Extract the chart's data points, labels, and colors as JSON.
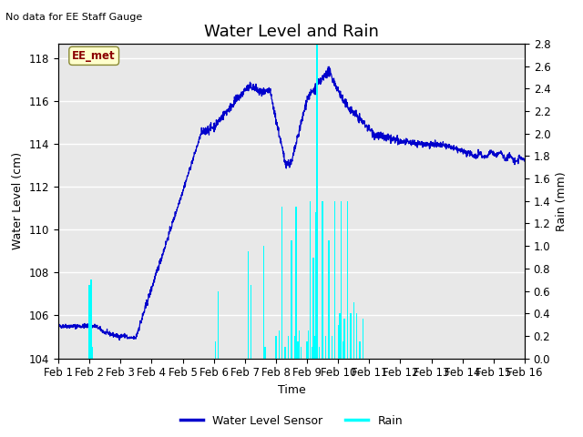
{
  "title": "Water Level and Rain",
  "top_left_text": "No data for EE Staff Gauge",
  "xlabel": "Time",
  "ylabel_left": "Water Level (cm)",
  "ylabel_right": "Rain (mm)",
  "ylim_left": [
    104,
    118.667
  ],
  "ylim_right": [
    0.0,
    2.8
  ],
  "yticks_left": [
    104,
    106,
    108,
    110,
    112,
    114,
    116,
    118
  ],
  "yticks_right": [
    0.0,
    0.2,
    0.4,
    0.6,
    0.8,
    1.0,
    1.2,
    1.4,
    1.6,
    1.8,
    2.0,
    2.2,
    2.4,
    2.6,
    2.8
  ],
  "xtick_labels": [
    "Feb 1",
    "Feb 2",
    "Feb 3",
    "Feb 4",
    "Feb 5",
    "Feb 6",
    "Feb 7",
    "Feb 8",
    "Feb 9",
    "Feb 10",
    "Feb 11",
    "Feb 12",
    "Feb 13",
    "Feb 14",
    "Feb 15",
    "Feb 16"
  ],
  "water_color": "#0000cc",
  "rain_color": "#00ffff",
  "legend_entries": [
    "Water Level Sensor",
    "Rain"
  ],
  "legend_colors": [
    "#0000cc",
    "#00ffff"
  ],
  "annotation_text": "EE_met",
  "background_color": "#e8e8e8",
  "grid_color": "#ffffff",
  "title_fontsize": 13,
  "label_fontsize": 9,
  "tick_fontsize": 8.5,
  "xlim": [
    0,
    15
  ]
}
